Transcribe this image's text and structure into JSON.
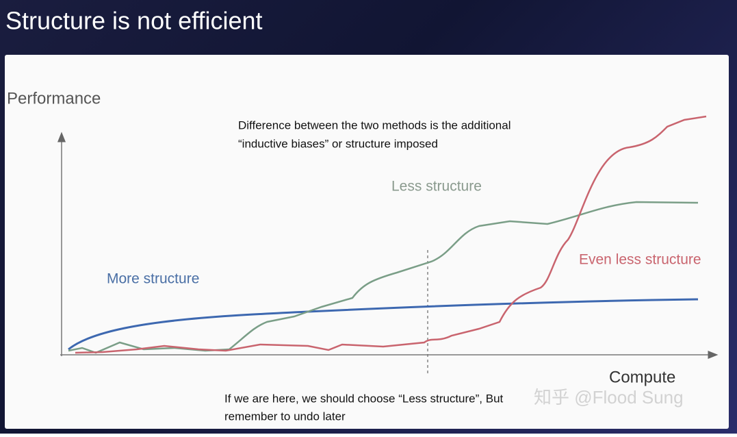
{
  "slide": {
    "title": "Structure is not efficient"
  },
  "diagram": {
    "y_label": "Performance",
    "x_label": "Compute",
    "annotation": [
      "Difference between the two methods is the additional",
      "“inductive biases” or structure imposed"
    ],
    "curves": [
      {
        "label": "More structure"
      },
      {
        "label": "Less structure"
      },
      {
        "label": "Even less structure"
      }
    ],
    "footnote": [
      "If we are here, we should choose “Less structure”, But",
      "remember to undo later"
    ]
  },
  "watermark": "知乎 @Flood Sung"
}
